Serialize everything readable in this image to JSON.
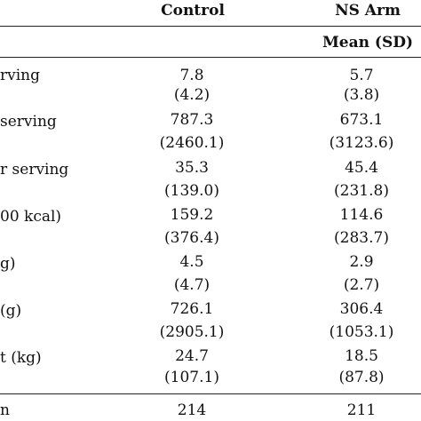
{
  "table": {
    "headers": {
      "control": "Control",
      "ns_arm": "NS Arm",
      "subheader_right": "Mean (SD)"
    },
    "rows": [
      {
        "label": "rving",
        "control_mean": "7.8",
        "control_sd": "(4.2)",
        "ns_mean": "5.7",
        "ns_sd": "(3.8)"
      },
      {
        "label": "serving",
        "control_mean": "787.3",
        "control_sd": "(2460.1)",
        "ns_mean": "673.1",
        "ns_sd": "(3123.6)"
      },
      {
        "label": "r serving",
        "control_mean": "35.3",
        "control_sd": "(139.0)",
        "ns_mean": "45.4",
        "ns_sd": "(231.8)"
      },
      {
        "label": "00 kcal)",
        "control_mean": "159.2",
        "control_sd": "(376.4)",
        "ns_mean": "114.6",
        "ns_sd": "(283.7)"
      },
      {
        "label": "g)",
        "control_mean": "4.5",
        "control_sd": "(4.7)",
        "ns_mean": "2.9",
        "ns_sd": "(2.7)"
      },
      {
        "label": "(g)",
        "control_mean": "726.1",
        "control_sd": "(2905.1)",
        "ns_mean": "306.4",
        "ns_sd": "(1053.1)"
      },
      {
        "label": "t (kg)",
        "control_mean": "24.7",
        "control_sd": "(107.1)",
        "ns_mean": "18.5",
        "ns_sd": "(87.8)"
      }
    ],
    "footer": {
      "label": "n",
      "control": "214",
      "ns_arm": "211"
    }
  }
}
